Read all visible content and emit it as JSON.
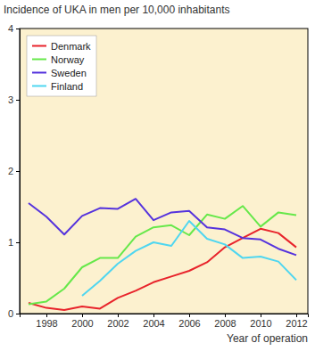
{
  "chart_data": {
    "type": "line",
    "title": "Incidence of UKA in men per 10,000 inhabitants",
    "x_label": "Year of operation",
    "x": [
      1997,
      1998,
      1999,
      2000,
      2001,
      2002,
      2003,
      2004,
      2005,
      2006,
      2007,
      2008,
      2009,
      2010,
      2011,
      2012
    ],
    "series": [
      {
        "name": "Denmark",
        "color": "#e8232b",
        "values": [
          0.15,
          0.08,
          0.05,
          0.1,
          0.07,
          0.22,
          0.32,
          0.44,
          0.52,
          0.6,
          0.72,
          0.93,
          1.06,
          1.19,
          1.13,
          0.93
        ]
      },
      {
        "name": "Norway",
        "color": "#66e84a",
        "values": [
          0.13,
          0.17,
          0.35,
          0.65,
          0.78,
          0.78,
          1.08,
          1.21,
          1.24,
          1.1,
          1.39,
          1.33,
          1.51,
          1.22,
          1.42,
          1.38
        ]
      },
      {
        "name": "Sweden",
        "color": "#5533dd",
        "values": [
          1.55,
          1.36,
          1.11,
          1.37,
          1.48,
          1.47,
          1.61,
          1.31,
          1.42,
          1.44,
          1.21,
          1.18,
          1.06,
          1.04,
          0.91,
          0.82
        ]
      },
      {
        "name": "Finland",
        "color": "#4fd6f0",
        "values": [
          null,
          null,
          null,
          0.25,
          0.46,
          0.7,
          0.88,
          1.0,
          0.95,
          1.3,
          1.05,
          0.97,
          0.78,
          0.8,
          0.73,
          0.47
        ]
      }
    ],
    "xlim": [
      1996.5,
      2012.65
    ],
    "xticks": [
      1998,
      2000,
      2002,
      2004,
      2006,
      2008,
      2010,
      2012
    ],
    "ylim": [
      0,
      4
    ],
    "yticks": [
      0,
      1,
      2,
      3,
      4
    ],
    "legend": "upper left",
    "grid": false
  }
}
